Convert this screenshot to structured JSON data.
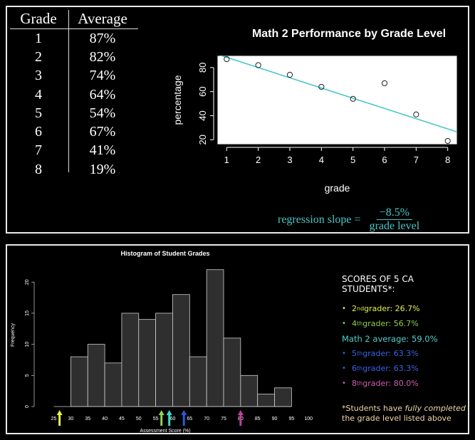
{
  "grade_table": {
    "headers": [
      "Grade",
      "Average"
    ],
    "rows": [
      [
        "1",
        "87%"
      ],
      [
        "2",
        "82%"
      ],
      [
        "3",
        "74%"
      ],
      [
        "4",
        "64%"
      ],
      [
        "5",
        "54%"
      ],
      [
        "6",
        "67%"
      ],
      [
        "7",
        "41%"
      ],
      [
        "8",
        "19%"
      ]
    ]
  },
  "chart_data": [
    {
      "type": "scatter",
      "title": "Math 2 Performance by Grade Level",
      "xlabel": "grade",
      "ylabel": "percentage",
      "x": [
        1,
        2,
        3,
        4,
        5,
        6,
        7,
        8
      ],
      "y": [
        87,
        82,
        74,
        64,
        54,
        67,
        41,
        19
      ],
      "xlim": [
        0.7,
        8.3
      ],
      "ylim": [
        16,
        90
      ],
      "xticks": [
        1,
        2,
        3,
        4,
        5,
        6,
        7,
        8
      ],
      "yticks": [
        20,
        40,
        60,
        80
      ],
      "regression_line": {
        "slope": -8.5,
        "intercept": 97.0
      },
      "line_color": "#48c6c6",
      "annotation": {
        "text": "regression slope =",
        "numerator": "−8.5%",
        "denominator": "grade level"
      }
    },
    {
      "type": "bar",
      "title": "Histogram of Student Grades",
      "xlabel": "Assessment Score (%)",
      "ylabel": "Frequency",
      "bin_edges": [
        25,
        30,
        35,
        40,
        45,
        50,
        55,
        60,
        65,
        70,
        75,
        80,
        85,
        90,
        95
      ],
      "values": [
        0,
        8,
        10,
        7,
        15,
        14,
        15,
        18,
        8,
        22,
        11,
        5,
        2,
        3
      ],
      "xticks": [
        25,
        30,
        35,
        40,
        45,
        50,
        55,
        60,
        65,
        70,
        75,
        80,
        85,
        90,
        95,
        100
      ],
      "yticks": [
        0,
        5,
        10,
        15,
        20
      ],
      "ylim": [
        0,
        23
      ],
      "markers": [
        {
          "score": 26.7,
          "color": "#e8ef4a"
        },
        {
          "score": 56.7,
          "color": "#8fd14f"
        },
        {
          "score": 59.0,
          "color": "#3fd6c8"
        },
        {
          "score": 63.3,
          "color": "#2a5ae0"
        },
        {
          "score": 80.0,
          "color": "#c040a0"
        }
      ]
    }
  ],
  "scores_legend": {
    "title": "SCORES OF 5 CA STUDENTS*:",
    "items": [
      {
        "ordinal": "2",
        "suffix": "nd",
        "text": " grader: 26.7%",
        "color": "#e8ef4a"
      },
      {
        "ordinal": "4",
        "suffix": "th",
        "text": " grader: 56.7%",
        "color": "#8fd14f"
      }
    ],
    "math_average": "Math 2 average: 59.0%",
    "items2": [
      {
        "ordinal": "5",
        "suffix": "th",
        "text": " grader: 63.3%",
        "color": "#3a63e6"
      },
      {
        "ordinal": "6",
        "suffix": "th",
        "text": " grader: 63.3%",
        "color": "#3a63e6"
      },
      {
        "ordinal": "8",
        "suffix": "th",
        "text": " grader: 80.0%",
        "color": "#d05fb0"
      }
    ],
    "footnote_pre": "*Students have ",
    "footnote_em": "fully completed",
    "footnote_post": " the grade level listed above"
  }
}
